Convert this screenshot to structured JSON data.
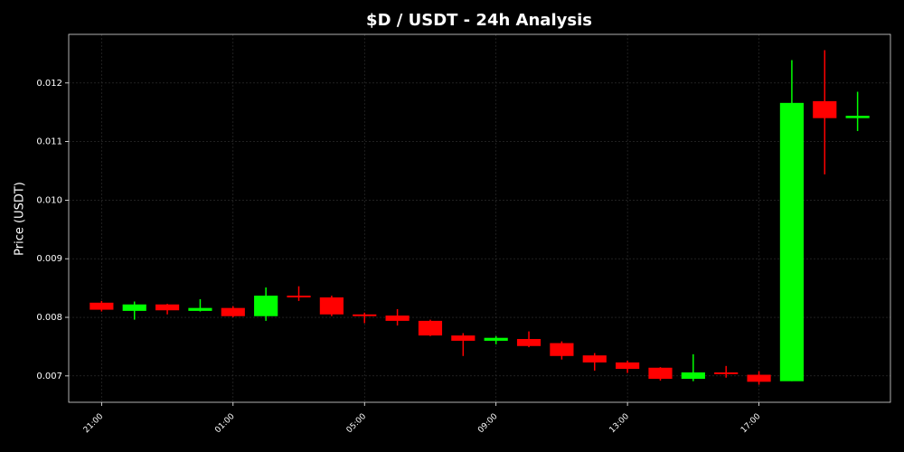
{
  "chart_data": {
    "type": "candlestick",
    "title": "$D / USDT - 24h Analysis",
    "y_label": "Price (USDT)",
    "categories": [
      "21:00",
      null,
      null,
      null,
      "01:00",
      null,
      null,
      null,
      "05:00",
      null,
      null,
      null,
      "09:00",
      null,
      null,
      null,
      "13:00",
      null,
      null,
      null,
      "17:00",
      null,
      null,
      null
    ],
    "open": [
      0.00825,
      0.00811,
      0.00822,
      0.00811,
      0.00816,
      0.00802,
      0.00837,
      0.00834,
      0.00805,
      0.00803,
      0.00794,
      0.00769,
      0.0076,
      0.00763,
      0.00756,
      0.00735,
      0.00723,
      0.00714,
      0.00695,
      0.00706,
      0.00702,
      0.00691,
      0.01169,
      0.0114
    ],
    "high": [
      0.00828,
      0.00827,
      0.00823,
      0.00831,
      0.00819,
      0.00851,
      0.00853,
      0.00837,
      0.00808,
      0.00814,
      0.00796,
      0.00773,
      0.00768,
      0.00776,
      0.00759,
      0.00739,
      0.00726,
      0.00715,
      0.00737,
      0.00717,
      0.00708,
      0.01239,
      0.01256,
      0.01185
    ],
    "low": [
      0.0081,
      0.00796,
      0.00805,
      0.0081,
      0.008,
      0.00794,
      0.00828,
      0.00802,
      0.0079,
      0.00786,
      0.00768,
      0.00734,
      0.00754,
      0.00749,
      0.00728,
      0.00709,
      0.00705,
      0.00692,
      0.00691,
      0.00697,
      0.00685,
      0.00691,
      0.01044,
      0.01118
    ],
    "close": [
      0.00813,
      0.00822,
      0.00812,
      0.00816,
      0.00802,
      0.00837,
      0.00834,
      0.00805,
      0.00802,
      0.00794,
      0.00769,
      0.0076,
      0.00765,
      0.00751,
      0.00734,
      0.00723,
      0.00712,
      0.00695,
      0.00706,
      0.00703,
      0.0069,
      0.01166,
      0.0114,
      0.01144
    ],
    "up_color": "#00ff00",
    "down_color": "#ff0000",
    "ylim": [
      0.00655,
      0.01283
    ],
    "yticks": [
      0.007,
      0.008,
      0.009,
      {
        "value": 0.01,
        "label": "0.010"
      },
      0.011,
      0.012
    ],
    "grid": true
  }
}
